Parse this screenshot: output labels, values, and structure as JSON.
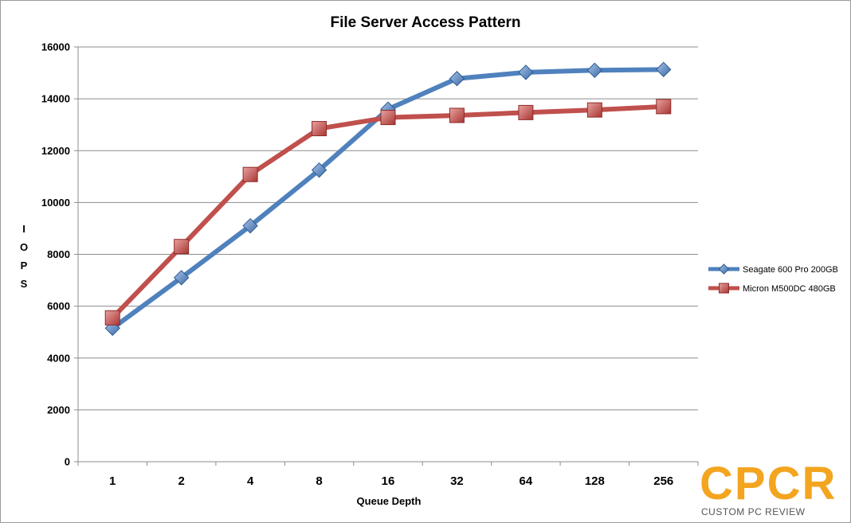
{
  "chart_data": {
    "type": "line",
    "title": "File Server Access Pattern",
    "xlabel": "Queue Depth",
    "ylabel": "I O P S",
    "categories": [
      "1",
      "2",
      "4",
      "8",
      "16",
      "32",
      "64",
      "128",
      "256"
    ],
    "ylim": [
      0,
      16000
    ],
    "yticks": [
      "0",
      "2000",
      "4000",
      "6000",
      "8000",
      "10000",
      "12000",
      "14000",
      "16000"
    ],
    "grid": true,
    "legend_position": "right",
    "series": [
      {
        "name": "Seagate 600 Pro 200GB",
        "color": "#4f81bd",
        "marker": "diamond",
        "values": [
          5150,
          7100,
          9100,
          11250,
          13600,
          14780,
          15020,
          15100,
          15130
        ]
      },
      {
        "name": "Micron M500DC 480GB",
        "color": "#c0504d",
        "marker": "square",
        "values": [
          5550,
          8300,
          11080,
          12850,
          13280,
          13360,
          13470,
          13570,
          13700
        ]
      }
    ]
  },
  "watermark": {
    "logo_text": "CPCR",
    "sub_text": "CUSTOM PC REVIEW",
    "color": "#f3a51f"
  }
}
